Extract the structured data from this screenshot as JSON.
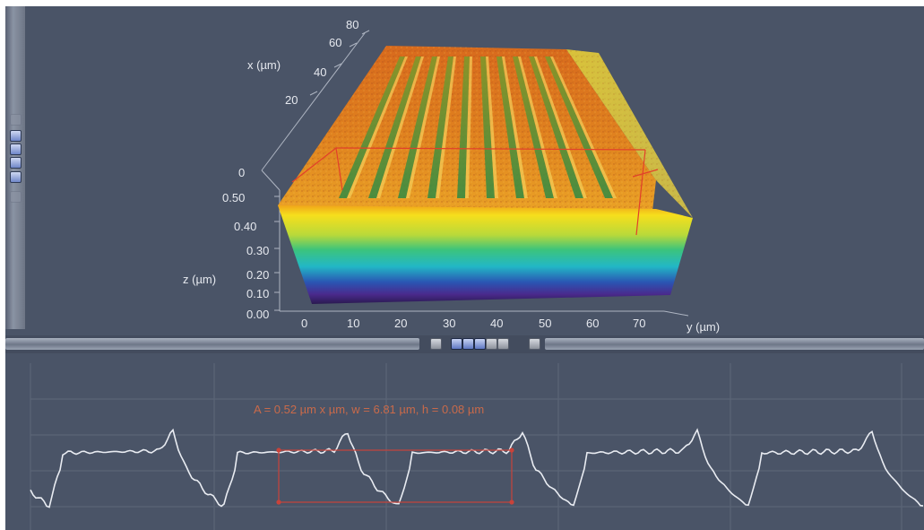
{
  "view3d": {
    "x_axis": {
      "title": "x (µm)",
      "ticks": [
        "0",
        "20",
        "40",
        "60",
        "80"
      ]
    },
    "y_axis": {
      "title": "y (µm)",
      "ticks": [
        "0",
        "10",
        "20",
        "30",
        "40",
        "50",
        "60",
        "70"
      ]
    },
    "z_axis": {
      "title": "z (µm)",
      "ticks": [
        "0.00",
        "0.10",
        "0.20",
        "0.30",
        "0.40",
        "0.50"
      ]
    },
    "colormap": [
      "#3a1e6e",
      "#2a3fa8",
      "#1fa8c9",
      "#2fc08a",
      "#8bd04a",
      "#f4e11c",
      "#f0a01e",
      "#e0601c"
    ]
  },
  "toolbar": {
    "buttons": [
      "button",
      "button",
      "button",
      "button",
      "button"
    ]
  },
  "profile": {
    "measurement": "A = 0.52 µm x µm, w = 6.81 µm, h = 0.08 µm",
    "line_color": "#e9ecf2",
    "marker_color": "#c9433a"
  }
}
